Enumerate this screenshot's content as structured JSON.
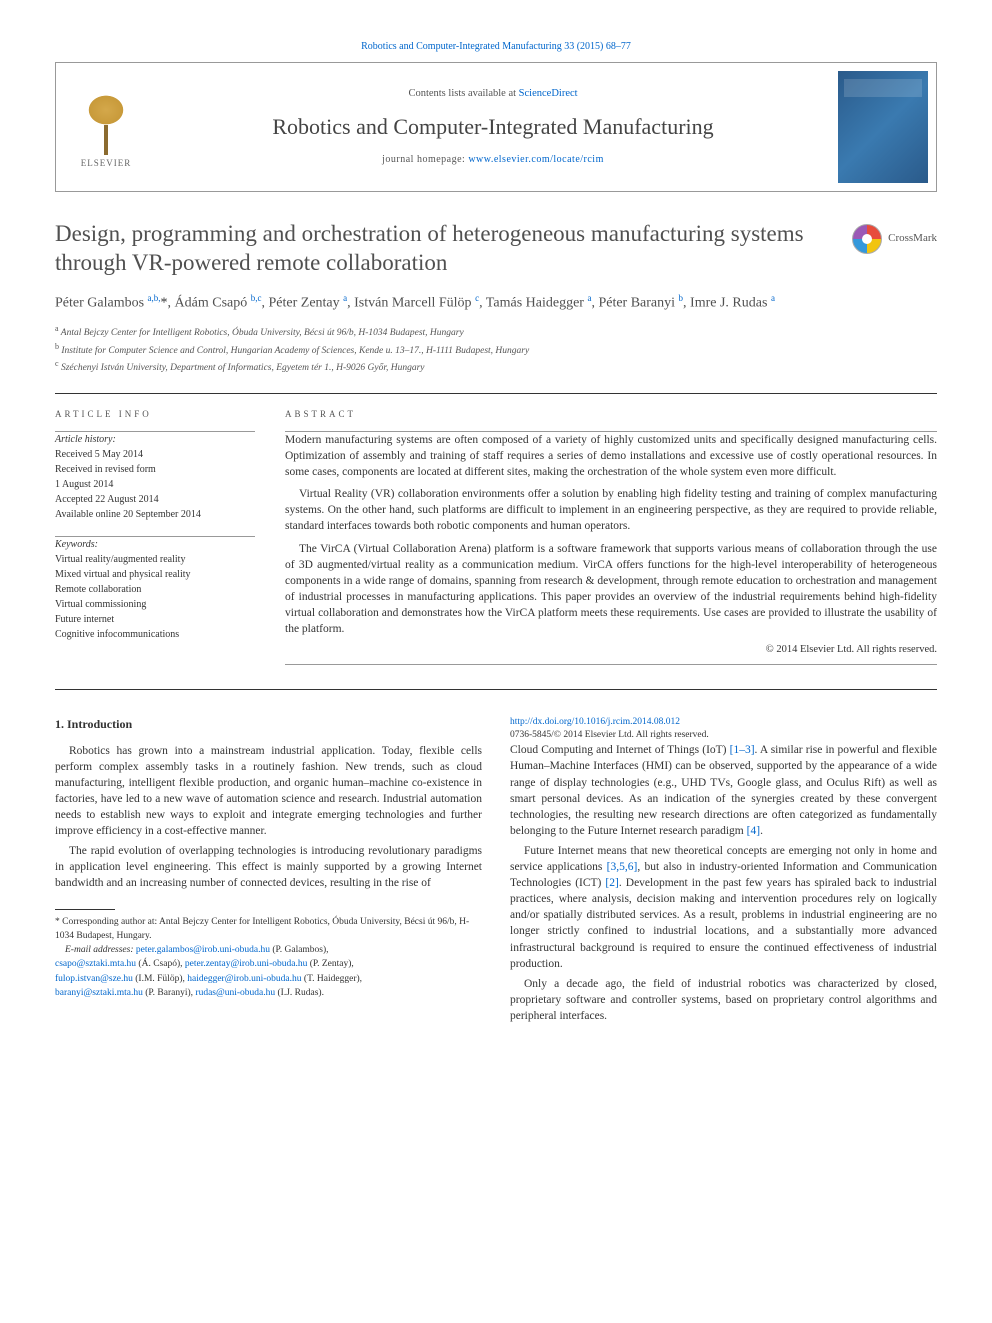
{
  "header": {
    "citation_text": "Robotics and Computer-Integrated Manufacturing 33 (2015) 68–77",
    "contents_prefix": "Contents lists available at ",
    "contents_link": "ScienceDirect",
    "journal_name": "Robotics and Computer-Integrated Manufacturing",
    "homepage_prefix": "journal homepage: ",
    "homepage_link": "www.elsevier.com/locate/rcim",
    "publisher_label": "ELSEVIER"
  },
  "crossmark_label": "CrossMark",
  "title": "Design, programming and orchestration of heterogeneous manufacturing systems through VR-powered remote collaboration",
  "authors_html": "Péter Galambos <sup>a,b,</sup><span class='star'>*</span>, Ádám Csapó <sup>b,c</sup>, Péter Zentay <sup>a</sup>, István Marcell Fülöp <sup>c</sup>, Tamás Haidegger <sup>a</sup>, Péter Baranyi <sup>b</sup>, Imre J. Rudas <sup>a</sup>",
  "affiliations": [
    "Antal Bejczy Center for Intelligent Robotics, Óbuda University, Bécsi út 96/b, H-1034 Budapest, Hungary",
    "Institute for Computer Science and Control, Hungarian Academy of Sciences, Kende u. 13–17., H-1111 Budapest, Hungary",
    "Széchenyi István University, Department of Informatics, Egyetem tér 1., H-9026 Győr, Hungary"
  ],
  "aff_markers": [
    "a",
    "b",
    "c"
  ],
  "info_label": "ARTICLE INFO",
  "abstract_label": "ABSTRACT",
  "history": {
    "heading": "Article history:",
    "received": "Received 5 May 2014",
    "revised1": "Received in revised form",
    "revised2": "1 August 2014",
    "accepted": "Accepted 22 August 2014",
    "online": "Available online 20 September 2014"
  },
  "keywords": {
    "heading": "Keywords:",
    "items": [
      "Virtual reality/augmented reality",
      "Mixed virtual and physical reality",
      "Remote collaboration",
      "Virtual commissioning",
      "Future internet",
      "Cognitive infocommunications"
    ]
  },
  "abstract": [
    "Modern manufacturing systems are often composed of a variety of highly customized units and specifically designed manufacturing cells. Optimization of assembly and training of staff requires a series of demo installations and excessive use of costly operational resources. In some cases, components are located at different sites, making the orchestration of the whole system even more difficult.",
    "Virtual Reality (VR) collaboration environments offer a solution by enabling high fidelity testing and training of complex manufacturing systems. On the other hand, such platforms are difficult to implement in an engineering perspective, as they are required to provide reliable, standard interfaces towards both robotic components and human operators.",
    "The VirCA (Virtual Collaboration Arena) platform is a software framework that supports various means of collaboration through the use of 3D augmented/virtual reality as a communication medium. VirCA offers functions for the high-level interoperability of heterogeneous components in a wide range of domains, spanning from research & development, through remote education to orchestration and management of industrial processes in manufacturing applications. This paper provides an overview of the industrial requirements behind high-fidelity virtual collaboration and demonstrates how the VirCA platform meets these requirements. Use cases are provided to illustrate the usability of the platform."
  ],
  "abstract_copyright": "© 2014 Elsevier Ltd. All rights reserved.",
  "intro_heading": "1. Introduction",
  "body": {
    "p1": "Robotics has grown into a mainstream industrial application. Today, flexible cells perform complex assembly tasks in a routinely fashion. New trends, such as cloud manufacturing, intelligent flexible production, and organic human–machine co-existence in factories, have led to a new wave of automation science and research. Industrial automation needs to establish new ways to exploit and integrate emerging technologies and further improve efficiency in a cost-effective manner.",
    "p2": "The rapid evolution of overlapping technologies is introducing revolutionary paradigms in application level engineering. This effect is mainly supported by a growing Internet bandwidth and an increasing number of connected devices, resulting in the rise of",
    "p3a": "Cloud Computing and Internet of Things (IoT) ",
    "p3ref1": "[1–3]",
    "p3b": ". A similar rise in powerful and flexible Human–Machine Interfaces (HMI) can be observed, supported by the appearance of a wide range of display technologies (e.g., UHD TVs, Google glass, and Oculus Rift) as well as smart personal devices. As an indication of the synergies created by these convergent technologies, the resulting new research directions are often categorized as fundamentally belonging to the Future Internet research paradigm ",
    "p3ref2": "[4]",
    "p3c": ".",
    "p4a": "Future Internet means that new theoretical concepts are emerging not only in home and service applications ",
    "p4ref1": "[3,5,6]",
    "p4b": ", but also in industry-oriented Information and Communication Technologies (ICT) ",
    "p4ref2": "[2]",
    "p4c": ". Development in the past few years has spiraled back to industrial practices, where analysis, decision making and intervention procedures rely on logically and/or spatially distributed services. As a result, problems in industrial engineering are no longer strictly confined to industrial locations, and a substantially more advanced infrastructural background is required to ensure the continued effectiveness of industrial production.",
    "p5": "Only a decade ago, the field of industrial robotics was characterized by closed, proprietary software and controller systems, based on proprietary control algorithms and peripheral interfaces."
  },
  "footnotes": {
    "corr": "Corresponding author at: Antal Bejczy Center for Intelligent Robotics, Óbuda University, Bécsi út 96/b, H-1034 Budapest, Hungary.",
    "email_label": "E-mail addresses: ",
    "emails": [
      {
        "addr": "peter.galambos@irob.uni-obuda.hu",
        "who": " (P. Galambos),"
      },
      {
        "addr": "csapo@sztaki.mta.hu",
        "who": " (Á. Csapó), "
      },
      {
        "addr": "peter.zentay@irob.uni-obuda.hu",
        "who": " (P. Zentay),"
      },
      {
        "addr": "fulop.istvan@sze.hu",
        "who": " (I.M. Fülöp), "
      },
      {
        "addr": "haidegger@irob.uni-obuda.hu",
        "who": " (T. Haidegger),"
      },
      {
        "addr": "baranyi@sztaki.mta.hu",
        "who": " (P. Baranyi), "
      },
      {
        "addr": "rudas@uni-obuda.hu",
        "who": " (I.J. Rudas)."
      }
    ]
  },
  "doi": {
    "link": "http://dx.doi.org/10.1016/j.rcim.2014.08.012",
    "issn_line": "0736-5845/© 2014 Elsevier Ltd. All rights reserved."
  }
}
